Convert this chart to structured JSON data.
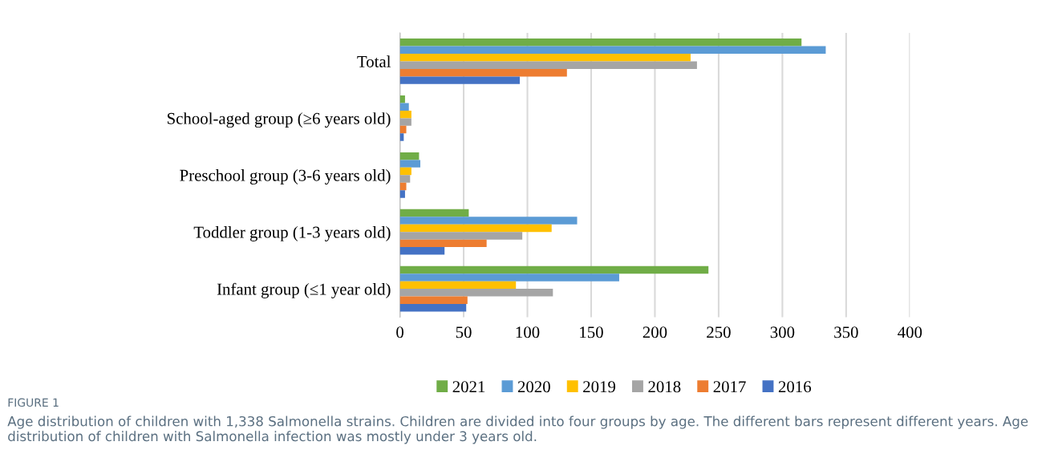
{
  "chart_data": {
    "type": "bar",
    "orientation": "horizontal",
    "title": "FIGURE 1",
    "categories": [
      "Total",
      "School-aged group (≥6 years old)",
      "Preschool group (3-6 years old)",
      "Toddler group (1-3 years old)",
      "Infant group (≤1 year old)"
    ],
    "series": [
      {
        "name": "2021",
        "color": "#70ad47",
        "values": [
          315,
          4,
          15,
          54,
          242
        ]
      },
      {
        "name": "2020",
        "color": "#5b9bd5",
        "values": [
          334,
          7,
          16,
          139,
          172
        ]
      },
      {
        "name": "2019",
        "color": "#ffc000",
        "values": [
          228,
          9,
          9,
          119,
          91
        ]
      },
      {
        "name": "2018",
        "color": "#a5a5a5",
        "values": [
          233,
          9,
          8,
          96,
          120
        ]
      },
      {
        "name": "2017",
        "color": "#ed7d31",
        "values": [
          131,
          5,
          5,
          68,
          53
        ]
      },
      {
        "name": "2016",
        "color": "#4472c4",
        "values": [
          94,
          3,
          4,
          35,
          52
        ]
      }
    ],
    "xlim": [
      0,
      400
    ],
    "xticks": [
      0,
      50,
      100,
      150,
      200,
      250,
      300,
      350,
      400
    ],
    "grid": "x",
    "legend": "bottom",
    "annotations": [
      "Age distribution of children with 1,338 Salmonella strains. Children are divided into four groups by age. The different bars represent different years. Age distribution of children with Salmonella infection was mostly under 3 years old."
    ]
  }
}
